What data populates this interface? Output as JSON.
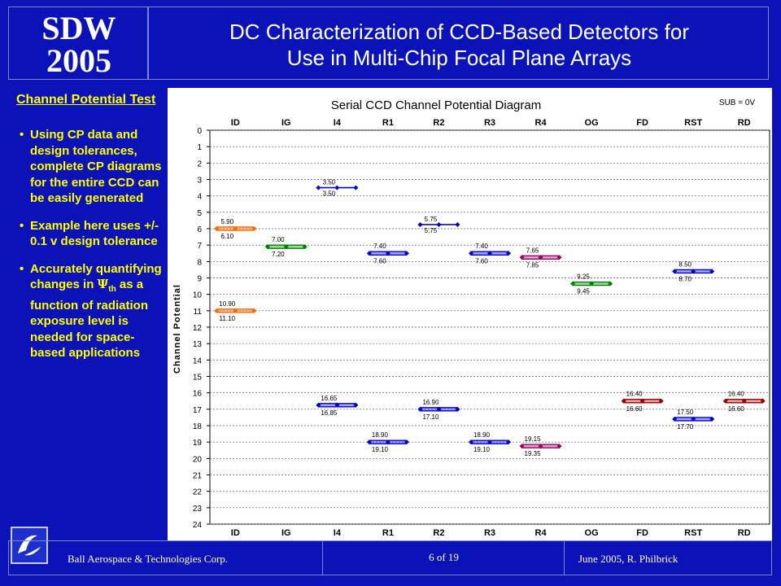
{
  "header": {
    "logo_line1": "SDW",
    "logo_line2": "2005",
    "title_line1": "DC Characterization of CCD-Based Detectors for",
    "title_line2": "Use in Multi-Chip Focal Plane Arrays"
  },
  "section": {
    "title": "Channel Potential Test",
    "colon": ":"
  },
  "bullets": [
    {
      "text": "Using CP data and design tolerances, complete CP diagrams for the entire CCD can be easily generated"
    },
    {
      "text": "Example here uses +/- 0.1 v design tolerance"
    },
    {
      "text_pre": "Accurately quantifying changes in ",
      "symbol": "Ψ",
      "subscript": "th",
      "text_post": " as a function of radiation exposure level is needed for space-based applications"
    }
  ],
  "footer": {
    "company": "Ball Aerospace & Technologies Corp.",
    "page": "6  of  19",
    "date_author": "June 2005,  R.  Philbrick"
  },
  "chart_data": {
    "type": "scatter",
    "title": "Serial CCD Channel Potential Diagram",
    "annotation": "SUB = 0V",
    "ylabel": "Channel Potential",
    "ylim": [
      0,
      24
    ],
    "y_reversed": true,
    "yticks": [
      0,
      1,
      2,
      3,
      4,
      5,
      6,
      7,
      8,
      9,
      10,
      11,
      12,
      13,
      14,
      15,
      16,
      17,
      18,
      19,
      20,
      21,
      22,
      23,
      24
    ],
    "grid": true,
    "categories": [
      "ID",
      "IG",
      "I4",
      "R1",
      "R2",
      "R3",
      "R4",
      "OG",
      "FD",
      "RST",
      "RD"
    ],
    "series": [
      {
        "color": "#ff6600",
        "points": [
          {
            "cat": 0,
            "top": 5.9,
            "bottom": 6.1,
            "top_label": "5.90",
            "bottom_label": "6.10"
          }
        ]
      },
      {
        "color": "#ff6600",
        "points": [
          {
            "cat": 0,
            "top": 10.9,
            "bottom": 11.1,
            "top_label": "10.90",
            "bottom_label": "11.10"
          }
        ]
      },
      {
        "color": "#008000",
        "points": [
          {
            "cat": 1,
            "top": 7.0,
            "bottom": 7.2,
            "top_label": "7.00",
            "bottom_label": "7.20"
          }
        ]
      },
      {
        "color": "#0000cc",
        "points": [
          {
            "cat": 2,
            "top": 3.5,
            "bottom": 3.5,
            "top_label": "3.50",
            "bottom_label": "3.50"
          }
        ]
      },
      {
        "color": "#0000cc",
        "points": [
          {
            "cat": 3,
            "top": 7.4,
            "bottom": 7.6,
            "top_label": "7.40",
            "bottom_label": "7.60"
          }
        ]
      },
      {
        "color": "#0000cc",
        "points": [
          {
            "cat": 4,
            "top": 5.75,
            "bottom": 5.75,
            "top_label": "5.75",
            "bottom_label": "5.75"
          }
        ]
      },
      {
        "color": "#0000cc",
        "points": [
          {
            "cat": 5,
            "top": 7.4,
            "bottom": 7.6,
            "top_label": "7.40",
            "bottom_label": "7.60"
          }
        ]
      },
      {
        "color": "#990066",
        "points": [
          {
            "cat": 6,
            "top": 7.65,
            "bottom": 7.85,
            "top_label": "7.65",
            "bottom_label": "7.85"
          }
        ]
      },
      {
        "color": "#008000",
        "points": [
          {
            "cat": 7,
            "top": 9.25,
            "bottom": 9.45,
            "top_label": "9.25",
            "bottom_label": "9.45"
          }
        ]
      },
      {
        "color": "#0000cc",
        "points": [
          {
            "cat": 9,
            "top": 8.5,
            "bottom": 8.7,
            "top_label": "8.50",
            "bottom_label": "8.70"
          }
        ]
      },
      {
        "color": "#0000cc",
        "points": [
          {
            "cat": 2,
            "top": 16.65,
            "bottom": 16.85,
            "top_label": "16.65",
            "bottom_label": "16.85"
          }
        ]
      },
      {
        "color": "#0000cc",
        "points": [
          {
            "cat": 4,
            "top": 16.9,
            "bottom": 17.1,
            "top_label": "16.90",
            "bottom_label": "17.10"
          }
        ]
      },
      {
        "color": "#0000cc",
        "points": [
          {
            "cat": 3,
            "top": 18.9,
            "bottom": 19.1,
            "top_label": "18.90",
            "bottom_label": "19.10"
          }
        ]
      },
      {
        "color": "#0000cc",
        "points": [
          {
            "cat": 5,
            "top": 18.9,
            "bottom": 19.1,
            "top_label": "18.90",
            "bottom_label": "19.10"
          }
        ]
      },
      {
        "color": "#990066",
        "points": [
          {
            "cat": 6,
            "top": 19.15,
            "bottom": 19.35,
            "top_label": "19.15",
            "bottom_label": "19.35"
          }
        ]
      },
      {
        "color": "#990000",
        "points": [
          {
            "cat": 8,
            "top": 16.4,
            "bottom": 16.6,
            "top_label": "16.40",
            "bottom_label": "16.60"
          }
        ]
      },
      {
        "color": "#0000cc",
        "points": [
          {
            "cat": 9,
            "top": 17.5,
            "bottom": 17.7,
            "top_label": "17.50",
            "bottom_label": "17.70"
          }
        ]
      },
      {
        "color": "#990000",
        "points": [
          {
            "cat": 10,
            "top": 16.4,
            "bottom": 16.6,
            "top_label": "16.40",
            "bottom_label": "16.60"
          }
        ]
      }
    ]
  },
  "colors": {
    "background": "#0a12b8",
    "accent_text": "#ffff00",
    "title_text": "#ffffff"
  },
  "icons": {
    "logo": "ball-logo-icon"
  }
}
